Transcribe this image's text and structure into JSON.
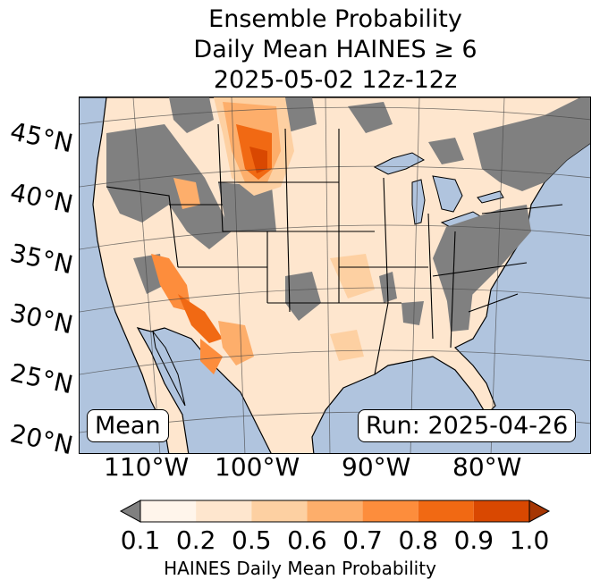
{
  "title": {
    "line1": "Ensemble Probability",
    "line2": "Daily Mean HAINES ≥ 6",
    "line3": "2025-05-02 12z-12z"
  },
  "lat_labels": [
    "45°N",
    "40°N",
    "35°N",
    "30°N",
    "25°N",
    "20°N"
  ],
  "lon_labels": [
    "110°W",
    "100°W",
    "90°W",
    "80°W"
  ],
  "mean_label": "Mean",
  "run_label": "Run: 2025-04-26",
  "colorbar": {
    "label": "HAINES Daily Mean Probability",
    "ticks": [
      "0.1",
      "0.2",
      "0.5",
      "0.6",
      "0.7",
      "0.8",
      "0.9",
      "1.0"
    ],
    "colors": [
      "#fff5eb",
      "#fee6ce",
      "#fdd0a2",
      "#fdae6b",
      "#fd8d3c",
      "#f16913",
      "#d94801",
      "#a63603"
    ],
    "under_color": "#808080"
  },
  "colors": {
    "ocean": "#b0c4de",
    "land_low": "#808080",
    "border": "#000000"
  }
}
